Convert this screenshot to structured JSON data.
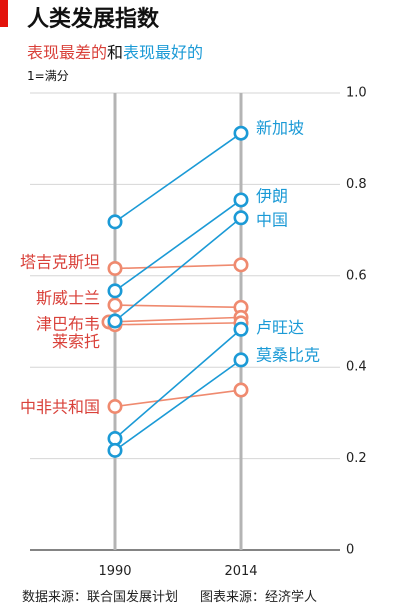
{
  "chart_data": {
    "type": "line",
    "title": "人类发展指数",
    "legend_joiner": "和",
    "note": "1=满分",
    "x": [
      "1990",
      "2014"
    ],
    "ylim": [
      0,
      1
    ],
    "yticks": [
      "1.0",
      "0.8",
      "0.6",
      "0.4",
      "0.2",
      "0"
    ],
    "grid": true,
    "groups": [
      {
        "label": "表现最差的",
        "color": "#ef8a6f",
        "label_color": "#d9413a",
        "series": [
          {
            "name": "塔吉克斯坦",
            "values": [
              0.616,
              0.624
            ]
          },
          {
            "name": "斯威士兰",
            "values": [
              0.536,
              0.531
            ]
          },
          {
            "name": "津巴布韦",
            "values": [
              0.499,
              0.509
            ]
          },
          {
            "name": "莱索托",
            "values": [
              0.493,
              0.497
            ]
          },
          {
            "name": "中非共和国",
            "values": [
              0.314,
              0.35
            ]
          }
        ]
      },
      {
        "label": "表现最好的",
        "color": "#1b9ad6",
        "label_color": "#1b9ad6",
        "series": [
          {
            "name": "新加坡",
            "values": [
              0.718,
              0.912
            ]
          },
          {
            "name": "伊朗",
            "values": [
              0.567,
              0.766
            ]
          },
          {
            "name": "中国",
            "values": [
              0.501,
              0.727
            ]
          },
          {
            "name": "卢旺达",
            "values": [
              0.244,
              0.483
            ]
          },
          {
            "name": "莫桑比克",
            "values": [
              0.218,
              0.416
            ]
          }
        ]
      }
    ],
    "sources": [
      "数据来源：联合国发展计划",
      "图表来源：经济学人"
    ]
  }
}
